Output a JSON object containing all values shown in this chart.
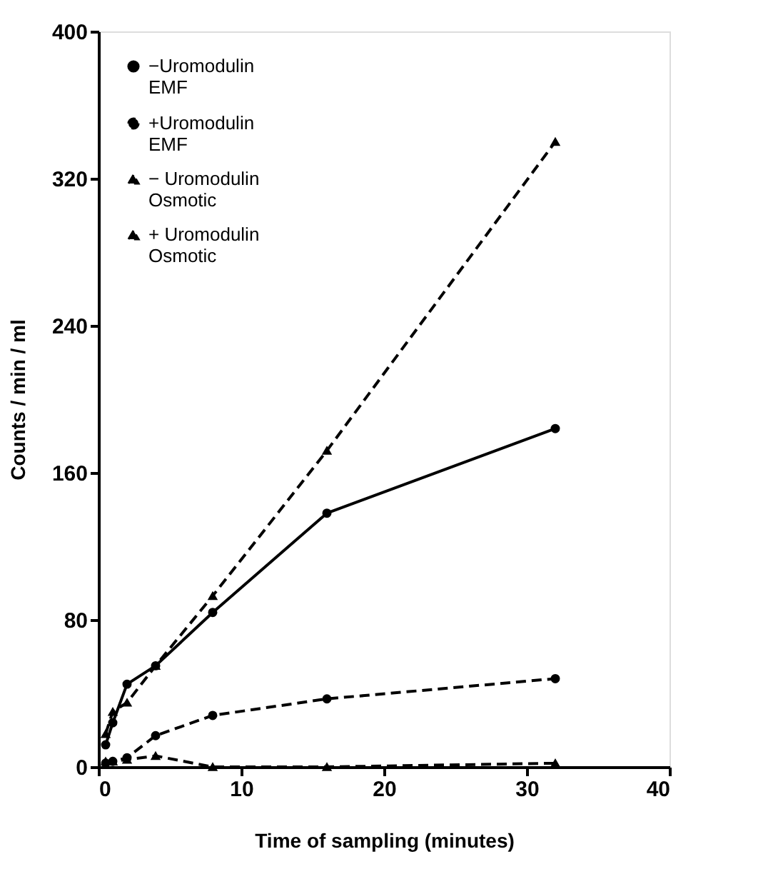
{
  "chart_data": {
    "type": "line",
    "xlabel": "Time of sampling (minutes)",
    "ylabel": "Counts / min / ml",
    "xlim": [
      0,
      40
    ],
    "xticks": [
      0,
      10,
      20,
      30,
      40
    ],
    "ylim": [
      0,
      400
    ],
    "yticks": [
      0,
      80,
      160,
      240,
      320,
      400
    ],
    "grid": false,
    "legend": "top left",
    "series": [
      {
        "name": "−Uromodulin EMF",
        "color": "#000000",
        "marker": "circle",
        "line_style": "solid",
        "x": [
          0.5,
          1,
          2,
          4,
          8,
          16,
          32
        ],
        "values": [
          12,
          24,
          45,
          55,
          84,
          138,
          184
        ]
      },
      {
        "name": "+Uromodulin EMF",
        "color": "#000000",
        "marker": "circle",
        "line_style": "dashed",
        "x": [
          0.5,
          1,
          2,
          4,
          8,
          16,
          32
        ],
        "values": [
          2,
          3,
          5,
          17,
          28,
          37,
          48
        ]
      },
      {
        "name": "−  Uromodulin Osmotic",
        "color": "#000000",
        "marker": "triangle",
        "line_style": "dashed",
        "x": [
          0.5,
          1,
          2,
          4,
          8,
          16,
          32
        ],
        "values": [
          18,
          30,
          35,
          55,
          93,
          172,
          340
        ]
      },
      {
        "name": "+  Uromodulin Osmotic",
        "color": "#000000",
        "marker": "triangle",
        "line_style": "dashed",
        "x": [
          0.5,
          1,
          2,
          4,
          8,
          16,
          32
        ],
        "values": [
          3,
          3,
          4,
          6,
          0,
          0,
          2
        ]
      }
    ]
  }
}
